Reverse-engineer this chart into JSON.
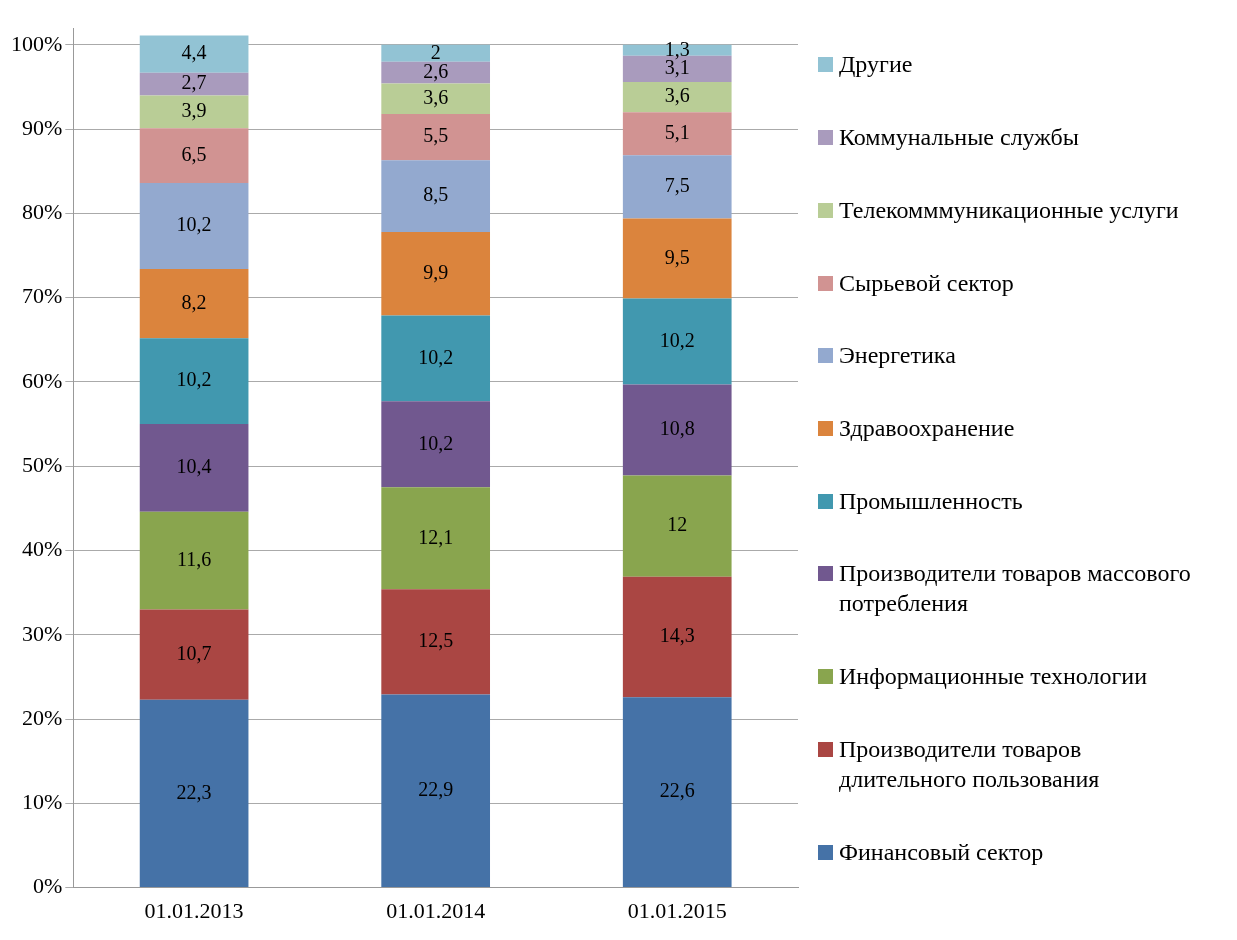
{
  "chart_data": {
    "type": "bar",
    "stacked": true,
    "legend": "right",
    "grid": "y",
    "categories": [
      "01.01.2013",
      "01.01.2014",
      "01.01.2015"
    ],
    "ylim": [
      0,
      102
    ],
    "yticks": [
      {
        "value": 0,
        "label": "0%"
      },
      {
        "value": 10,
        "label": "10%"
      },
      {
        "value": 20,
        "label": "20%"
      },
      {
        "value": 30,
        "label": "30%"
      },
      {
        "value": 40,
        "label": "40%"
      },
      {
        "value": 50,
        "label": "50%"
      },
      {
        "value": 60,
        "label": "60%"
      },
      {
        "value": 70,
        "label": "70%"
      },
      {
        "value": 80,
        "label": "80%"
      },
      {
        "value": 90,
        "label": "90%"
      },
      {
        "value": 100,
        "label": "100%"
      }
    ],
    "series": [
      {
        "name": "Финансовый сектор",
        "color": "#4572a7",
        "values": [
          22.3,
          22.9,
          22.6
        ],
        "value_labels": [
          "22,3",
          "22,9",
          "22,6"
        ]
      },
      {
        "name": "Производители товаров длительного пользования",
        "color": "#aa4643",
        "values": [
          10.7,
          12.5,
          14.3
        ],
        "value_labels": [
          "10,7",
          "12,5",
          "14,3"
        ]
      },
      {
        "name": "Информационные технологии",
        "color": "#89a54e",
        "values": [
          11.6,
          12.1,
          12
        ],
        "value_labels": [
          "11,6",
          "12,1",
          "12"
        ]
      },
      {
        "name": "Производители товаров массового потребления",
        "color": "#71588f",
        "values": [
          10.4,
          10.2,
          10.8
        ],
        "value_labels": [
          "10,4",
          "10,2",
          "10,8"
        ]
      },
      {
        "name": "Промышленность",
        "color": "#4198af",
        "values": [
          10.2,
          10.2,
          10.2
        ],
        "value_labels": [
          "10,2",
          "10,2",
          "10,2"
        ]
      },
      {
        "name": "Здравоохранение",
        "color": "#db843d",
        "values": [
          8.2,
          9.9,
          9.5
        ],
        "value_labels": [
          "8,2",
          "9,9",
          "9,5"
        ]
      },
      {
        "name": "Энергетика",
        "color": "#93a9cf",
        "values": [
          10.2,
          8.5,
          7.5
        ],
        "value_labels": [
          "10,2",
          "8,5",
          "7,5"
        ]
      },
      {
        "name": "Сырьевой сектор",
        "color": "#d19392",
        "values": [
          6.5,
          5.5,
          5.1
        ],
        "value_labels": [
          "6,5",
          "5,5",
          "5,1"
        ]
      },
      {
        "name": "Телекомммуникационные услуги",
        "color": "#b9cd96",
        "values": [
          3.9,
          3.6,
          3.6
        ],
        "value_labels": [
          "3,9",
          "3,6",
          "3,6"
        ]
      },
      {
        "name": "Коммунальные службы",
        "color": "#a99bbd",
        "values": [
          2.7,
          2.6,
          3.1
        ],
        "value_labels": [
          "2,7",
          "2,6",
          "3,1"
        ]
      },
      {
        "name": "Другие",
        "color": "#92c3d4",
        "values": [
          4.4,
          2,
          1.3
        ],
        "value_labels": [
          "4,4",
          "2",
          "1,3"
        ]
      }
    ]
  }
}
